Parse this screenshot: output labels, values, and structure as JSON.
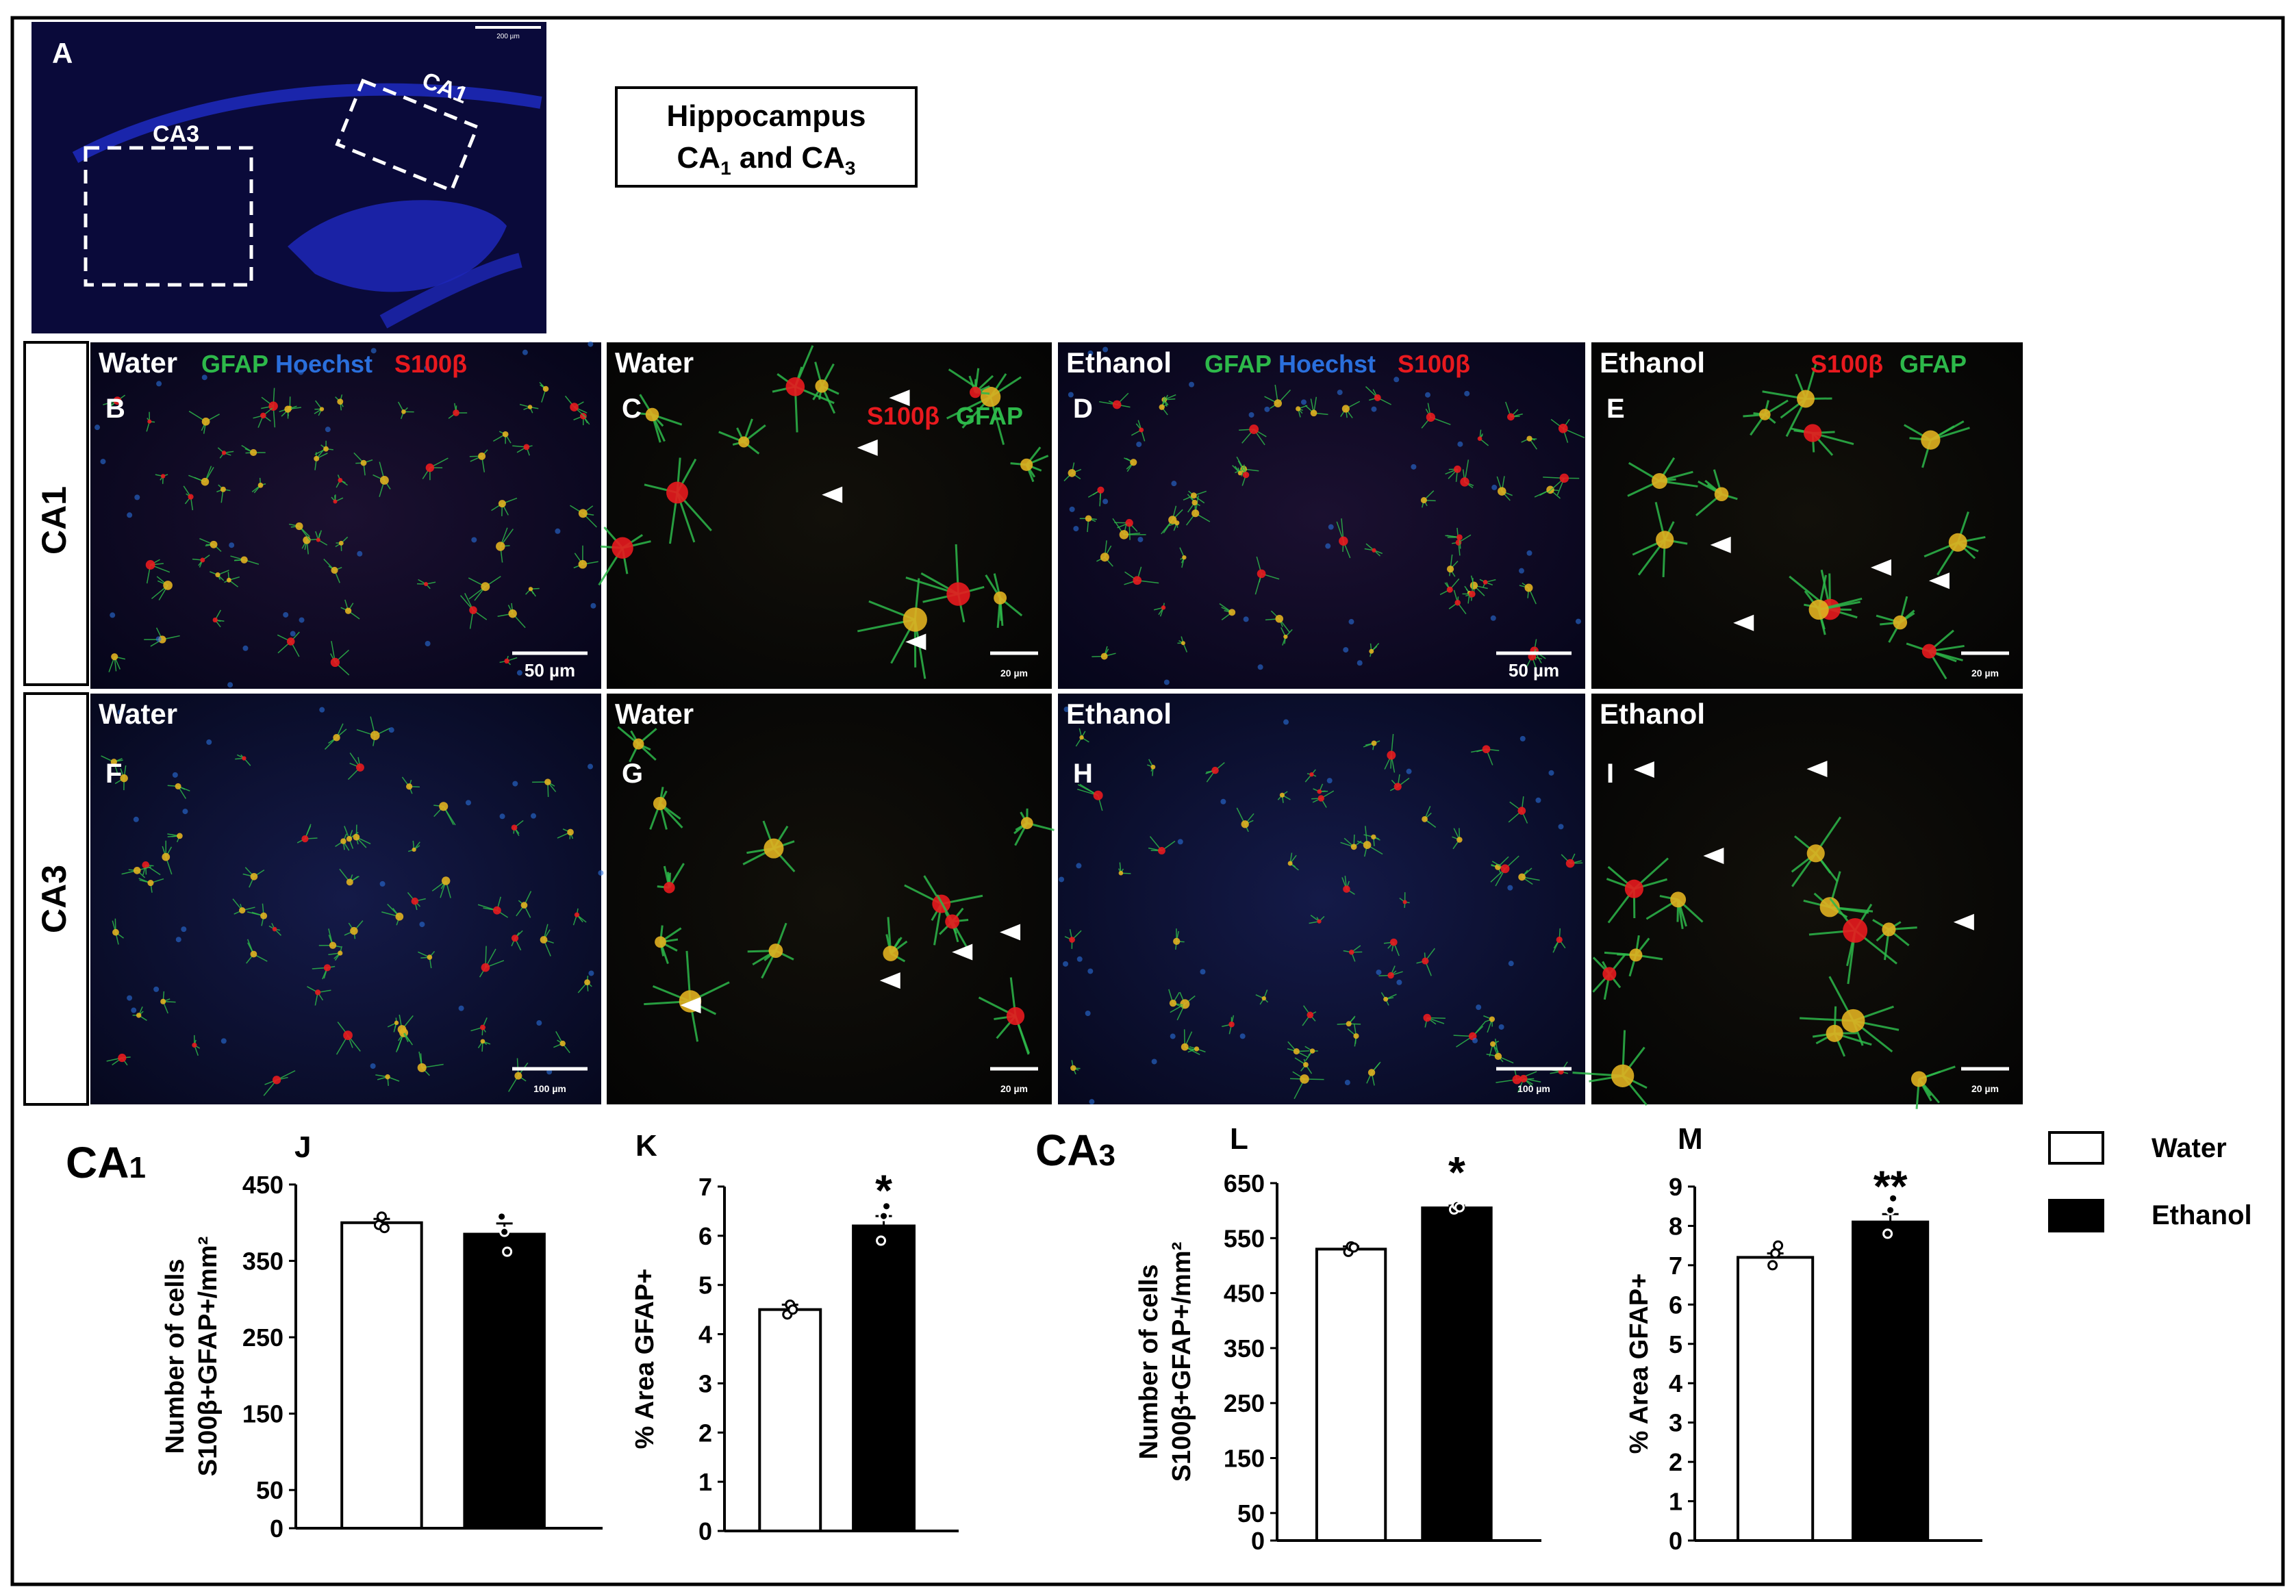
{
  "panel_a": {
    "letter": "A",
    "scale_bar": "200 µm",
    "box_labels": [
      "CA3",
      "CA1"
    ],
    "caption_line1": "Hippocampus",
    "caption_line2_parts": [
      "CA",
      "1",
      " and CA",
      "3"
    ]
  },
  "row_labels": {
    "ca1": "CA1",
    "ca3": "CA3"
  },
  "micrographs": [
    {
      "letter": "B",
      "group": "Water",
      "stains": [
        "GFAP",
        "Hoechst",
        "S100β"
      ],
      "scale": "50 µm"
    },
    {
      "letter": "C",
      "group": "Water",
      "stains": [
        "S100β",
        "GFAP"
      ],
      "scale": "20 µm"
    },
    {
      "letter": "D",
      "group": "Ethanol",
      "stains": [
        "GFAP",
        "Hoechst",
        "S100β"
      ],
      "scale": "50 µm"
    },
    {
      "letter": "E",
      "group": "Ethanol",
      "stains": [
        "S100β",
        "GFAP"
      ],
      "scale": "20 µm"
    },
    {
      "letter": "F",
      "group": "Water",
      "stains": [],
      "scale": "100 µm"
    },
    {
      "letter": "G",
      "group": "Water",
      "stains": [],
      "scale": "20 µm"
    },
    {
      "letter": "H",
      "group": "Ethanol",
      "stains": [],
      "scale": "100 µm"
    },
    {
      "letter": "I",
      "group": "Ethanol",
      "stains": [],
      "scale": "20 µm"
    }
  ],
  "section_titles": {
    "ca1": [
      "CA",
      "1"
    ],
    "ca3": [
      "CA",
      "3"
    ]
  },
  "legend": [
    {
      "label": "Water",
      "color": "#ffffff"
    },
    {
      "label": "Ethanol",
      "color": "#000000"
    }
  ],
  "colors": {
    "gfap": "#2db84a",
    "hoechst": "#2a6fdc",
    "s100b": "#e8191e",
    "tissue": "#0a0a3a"
  },
  "chart_data": [
    {
      "type": "bar",
      "panel": "J",
      "region": "CA1",
      "categories": [
        "Water",
        "Ethanol"
      ],
      "values": [
        400,
        385
      ],
      "errors": [
        5,
        14
      ],
      "points": [
        [
          397,
          408,
          393
        ],
        [
          408,
          388,
          362
        ]
      ],
      "ylabel_lines": [
        "Number of cells",
        "S100β+GFAP+/mm²"
      ],
      "yticks": [
        0,
        50,
        150,
        250,
        350,
        450
      ],
      "ylim": [
        0,
        450
      ],
      "significance": ""
    },
    {
      "type": "bar",
      "panel": "K",
      "region": "CA1",
      "categories": [
        "Water",
        "Ethanol"
      ],
      "values": [
        4.5,
        6.2
      ],
      "errors": [
        0.1,
        0.2
      ],
      "points": [
        [
          4.4,
          4.6,
          4.5
        ],
        [
          5.9,
          6.4,
          6.6
        ]
      ],
      "ylabel_lines": [
        "% Area GFAP+"
      ],
      "yticks": [
        0,
        1,
        2,
        3,
        4,
        5,
        6,
        7
      ],
      "ylim": [
        0,
        7
      ],
      "significance": "*"
    },
    {
      "type": "bar",
      "panel": "L",
      "region": "CA3",
      "categories": [
        "Water",
        "Ethanol"
      ],
      "values": [
        530,
        605
      ],
      "errors": [
        5,
        4
      ],
      "points": [
        [
          525,
          535,
          533
        ],
        [
          602,
          610,
          606
        ]
      ],
      "ylabel_lines": [
        "Number of cells",
        "S100β+GFAP+/mm²"
      ],
      "yticks": [
        0,
        50,
        150,
        250,
        350,
        450,
        550,
        650
      ],
      "ylim": [
        0,
        650
      ],
      "significance": "*"
    },
    {
      "type": "bar",
      "panel": "M",
      "region": "CA3",
      "categories": [
        "Water",
        "Ethanol"
      ],
      "values": [
        7.2,
        8.1
      ],
      "errors": [
        0.1,
        0.2
      ],
      "points": [
        [
          7.0,
          7.3,
          7.5
        ],
        [
          7.8,
          8.4,
          8.7
        ]
      ],
      "ylabel_lines": [
        "% Area GFAP+"
      ],
      "yticks": [
        0,
        1,
        2,
        3,
        4,
        5,
        6,
        7,
        8,
        9
      ],
      "ylim": [
        0,
        9
      ],
      "significance": "**"
    }
  ]
}
